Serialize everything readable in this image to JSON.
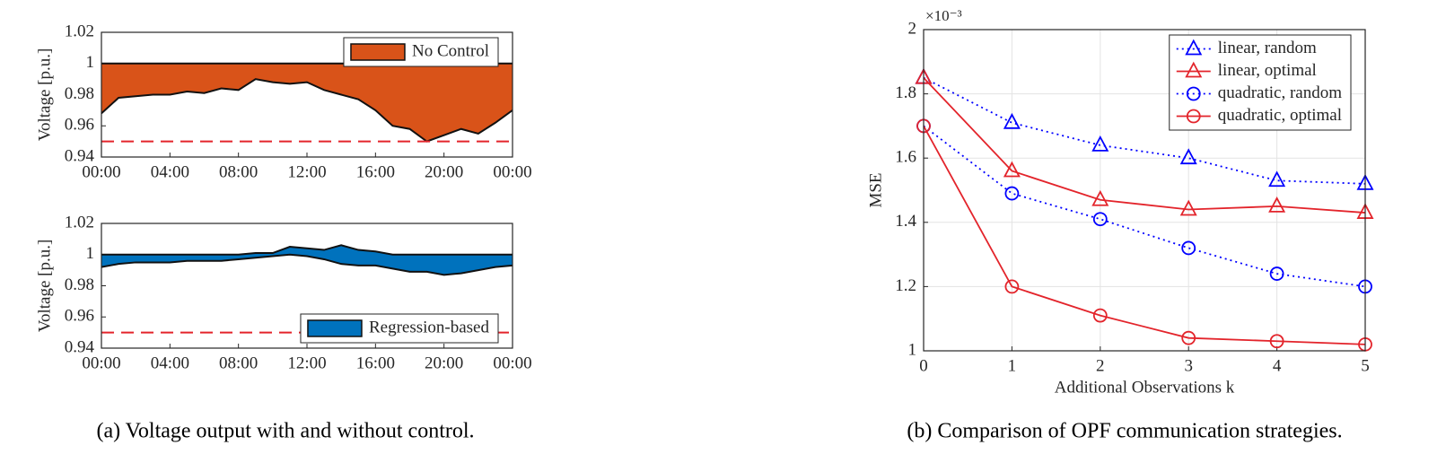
{
  "chart_data": [
    {
      "type": "band",
      "ylabel": "Voltage [p.u.]",
      "x": [
        0,
        1,
        2,
        3,
        4,
        5,
        6,
        7,
        8,
        9,
        10,
        11,
        12,
        13,
        14,
        15,
        16,
        17,
        18,
        19,
        20,
        21,
        22,
        23,
        24
      ],
      "series": [
        {
          "name": "No Control",
          "color": "#d95319",
          "upper": [
            1,
            1,
            1,
            1,
            1,
            1,
            1,
            1,
            1,
            1,
            1,
            1,
            1,
            1,
            1,
            1,
            1,
            1,
            1,
            1,
            1,
            1,
            1,
            1,
            1
          ],
          "lower": [
            0.968,
            0.978,
            0.979,
            0.98,
            0.98,
            0.982,
            0.981,
            0.984,
            0.983,
            0.99,
            0.988,
            0.987,
            0.988,
            0.983,
            0.98,
            0.977,
            0.97,
            0.96,
            0.958,
            0.95,
            0.954,
            0.958,
            0.955,
            0.962,
            0.97
          ]
        }
      ],
      "reference_line": 0.95,
      "reference_color": "#e3242b",
      "xlim": [
        0,
        24
      ],
      "ylim": [
        0.94,
        1.02
      ],
      "xticks": [
        {
          "value": 0,
          "label": "00:00"
        },
        {
          "value": 4,
          "label": "04:00"
        },
        {
          "value": 8,
          "label": "08:00"
        },
        {
          "value": 12,
          "label": "12:00"
        },
        {
          "value": 16,
          "label": "16:00"
        },
        {
          "value": 20,
          "label": "20:00"
        },
        {
          "value": 24,
          "label": "00:00"
        }
      ],
      "yticks": [
        0.94,
        0.96,
        0.98,
        1,
        1.02
      ],
      "grid": false,
      "legend": "upper right"
    },
    {
      "type": "band",
      "ylabel": "Voltage [p.u.]",
      "x": [
        0,
        1,
        2,
        3,
        4,
        5,
        6,
        7,
        8,
        9,
        10,
        11,
        12,
        13,
        14,
        15,
        16,
        17,
        18,
        19,
        20,
        21,
        22,
        23,
        24
      ],
      "series": [
        {
          "name": "Regression-based",
          "color": "#0072bd",
          "upper": [
            1,
            1,
            1,
            1,
            1,
            1,
            1,
            1,
            1,
            1.001,
            1.001,
            1.005,
            1.004,
            1.003,
            1.006,
            1.003,
            1.002,
            1,
            1,
            1,
            1,
            1,
            1,
            1,
            1
          ],
          "lower": [
            0.992,
            0.994,
            0.995,
            0.995,
            0.995,
            0.996,
            0.996,
            0.996,
            0.997,
            0.998,
            0.999,
            1,
            0.999,
            0.997,
            0.994,
            0.993,
            0.993,
            0.991,
            0.989,
            0.989,
            0.987,
            0.988,
            0.99,
            0.992,
            0.993
          ]
        }
      ],
      "reference_line": 0.95,
      "reference_color": "#e3242b",
      "xlim": [
        0,
        24
      ],
      "ylim": [
        0.94,
        1.02
      ],
      "xticks": [
        {
          "value": 0,
          "label": "00:00"
        },
        {
          "value": 4,
          "label": "04:00"
        },
        {
          "value": 8,
          "label": "08:00"
        },
        {
          "value": 12,
          "label": "12:00"
        },
        {
          "value": 16,
          "label": "16:00"
        },
        {
          "value": 20,
          "label": "20:00"
        },
        {
          "value": 24,
          "label": "00:00"
        }
      ],
      "yticks": [
        0.94,
        0.96,
        0.98,
        1,
        1.02
      ],
      "grid": false,
      "legend": "lower right"
    },
    {
      "type": "line",
      "xlabel": "Additional Observations k",
      "ylabel": "MSE",
      "y_multiplier": "×10⁻³",
      "x": [
        0,
        1,
        2,
        3,
        4,
        5
      ],
      "series": [
        {
          "name": "linear, random",
          "color": "#0000ff",
          "dash": "dotted",
          "marker": "triangle",
          "values": [
            1.85,
            1.71,
            1.64,
            1.6,
            1.53,
            1.52
          ]
        },
        {
          "name": "linear, optimal",
          "color": "#e3242b",
          "dash": "solid",
          "marker": "triangle",
          "values": [
            1.85,
            1.56,
            1.47,
            1.44,
            1.45,
            1.43
          ]
        },
        {
          "name": "quadratic, random",
          "color": "#0000ff",
          "dash": "dotted",
          "marker": "circle",
          "values": [
            1.7,
            1.49,
            1.41,
            1.32,
            1.24,
            1.2
          ]
        },
        {
          "name": "quadratic, optimal",
          "color": "#e3242b",
          "dash": "solid",
          "marker": "circle",
          "values": [
            1.7,
            1.2,
            1.11,
            1.04,
            1.03,
            1.02
          ]
        }
      ],
      "xlim": [
        0,
        5
      ],
      "ylim": [
        1,
        2
      ],
      "xticks": [
        0,
        1,
        2,
        3,
        4,
        5
      ],
      "yticks": [
        1,
        1.2,
        1.4,
        1.6,
        1.8,
        2
      ],
      "grid": true,
      "legend": "upper right"
    }
  ],
  "captions": [
    "(a) Voltage output with and without control.",
    "(b) Comparison of OPF communication strategies."
  ]
}
